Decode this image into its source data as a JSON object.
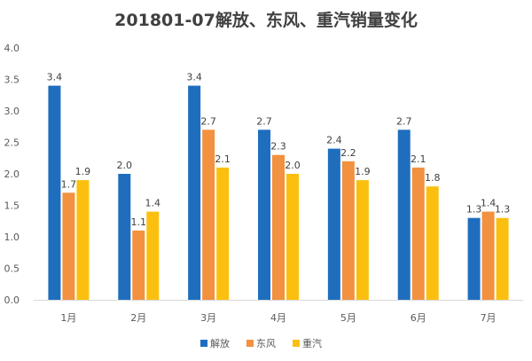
{
  "chart_data": {
    "type": "bar",
    "title": "201801-07解放、东风、重汽销量变化",
    "xlabel": "",
    "ylabel": "",
    "ylim": [
      0,
      4.0
    ],
    "yticks": [
      "0.0",
      "0.5",
      "1.0",
      "1.5",
      "2.0",
      "2.5",
      "3.0",
      "3.5",
      "4.0"
    ],
    "categories": [
      "1月",
      "2月",
      "3月",
      "4月",
      "5月",
      "6月",
      "7月"
    ],
    "series": [
      {
        "name": "解放",
        "color": "#1f6ebe",
        "values": [
          3.4,
          2.0,
          3.4,
          2.7,
          2.4,
          2.7,
          1.3
        ]
      },
      {
        "name": "东风",
        "color": "#f2913f",
        "values": [
          1.7,
          1.1,
          2.7,
          2.3,
          2.2,
          2.1,
          1.4
        ]
      },
      {
        "name": "重汽",
        "color": "#fbc00f",
        "values": [
          1.9,
          1.4,
          2.1,
          2.0,
          1.9,
          1.8,
          1.3
        ]
      }
    ],
    "grid": false,
    "legend": "bottom"
  }
}
